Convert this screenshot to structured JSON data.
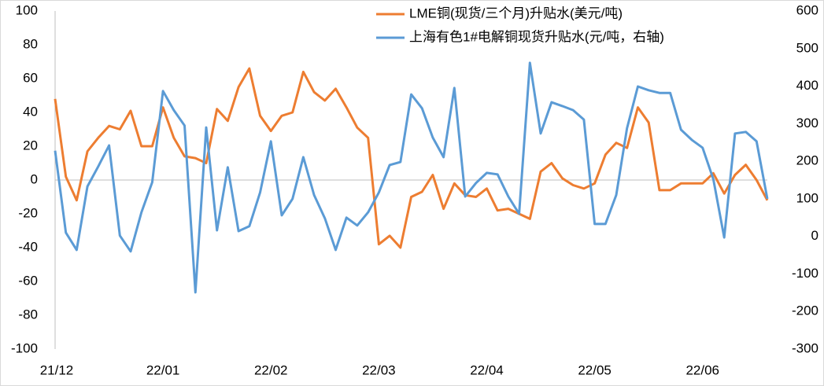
{
  "chart_data": {
    "type": "line",
    "categories": [
      "21/12",
      null,
      null,
      null,
      null,
      null,
      null,
      null,
      null,
      null,
      "22/01",
      null,
      null,
      null,
      null,
      null,
      null,
      null,
      null,
      null,
      "22/02",
      null,
      null,
      null,
      null,
      null,
      null,
      null,
      null,
      null,
      "22/03",
      null,
      null,
      null,
      null,
      null,
      null,
      null,
      null,
      null,
      "22/04",
      null,
      null,
      null,
      null,
      null,
      null,
      null,
      null,
      null,
      "22/05",
      null,
      null,
      null,
      null,
      null,
      null,
      null,
      null,
      null,
      "22/06",
      null,
      null,
      null,
      null,
      null,
      null
    ],
    "series": [
      {
        "name": "LME铜(现货/三个月)升贴水(美元/吨)",
        "color": "#ed7d31",
        "values": [
          48,
          2,
          -12,
          17,
          25,
          32,
          30,
          41,
          20,
          20,
          43,
          25,
          14,
          13,
          10,
          42,
          35,
          55,
          66,
          38,
          29,
          38,
          40,
          64,
          52,
          47,
          54,
          43,
          31,
          25,
          -38,
          -33,
          -40,
          -10,
          -7,
          3,
          -17,
          -2,
          -9,
          -10,
          -5,
          -18,
          -17,
          -20,
          -23,
          5,
          10,
          1,
          -3,
          -5,
          -2,
          15,
          22,
          19,
          43,
          34,
          -6,
          -6,
          -2,
          -2,
          -2,
          4,
          -8,
          3,
          9,
          0,
          -12
        ]
      },
      {
        "name": "上海有色1#电解铜现货升贴水(元/吨，右轴)",
        "color": "#5b9bd5",
        "axis": "y2",
        "values": [
          228,
          10,
          -36,
          133,
          186,
          242,
          2,
          -40,
          64,
          144,
          387,
          336,
          295,
          -149,
          290,
          16,
          184,
          14,
          27,
          117,
          253,
          56,
          100,
          211,
          110,
          48,
          -36,
          50,
          29,
          64,
          117,
          190,
          198,
          378,
          341,
          263,
          211,
          395,
          106,
          142,
          169,
          165,
          106,
          60,
          462,
          274,
          357,
          347,
          336,
          311,
          33,
          33,
          110,
          288,
          399,
          389,
          382,
          382,
          284,
          257,
          236,
          152,
          -3,
          274,
          278,
          253,
          100
        ]
      }
    ],
    "ylim": [
      -100,
      100
    ],
    "yticks": [
      100,
      80,
      60,
      40,
      20,
      0,
      -20,
      -40,
      -60,
      -80,
      -100
    ],
    "y2lim": [
      -300,
      600
    ],
    "y2ticks": [
      600,
      500,
      400,
      300,
      200,
      100,
      0,
      -100,
      -200,
      -300
    ],
    "legend": "top"
  }
}
